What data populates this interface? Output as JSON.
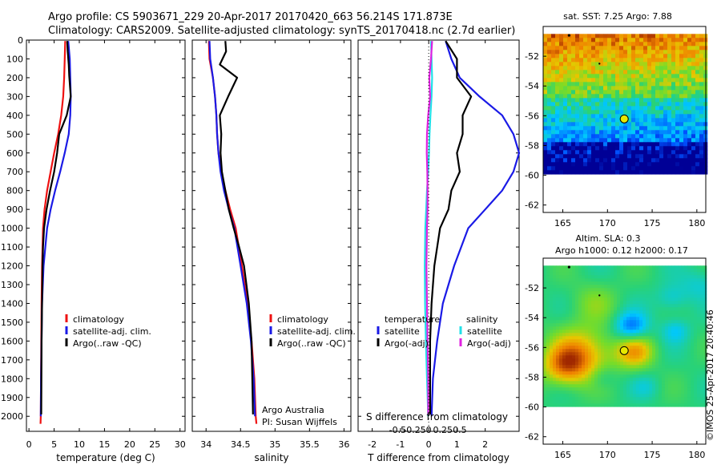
{
  "header": {
    "line1": "Argo profile: CS 5903671_229 20-Apr-2017 20170420_663 56.214S 171.873E",
    "line2": "Climatology: CARS2009. Satellite-adjusted climatology: synTS_20170418.nc (2.7d earlier)"
  },
  "colors": {
    "red": "#ee1111",
    "blue": "#1a1ae6",
    "black": "#000000",
    "cyan": "#22e0e8",
    "magenta": "#e020e0"
  },
  "chart_data": [
    {
      "type": "line",
      "id": "temperature",
      "xlabel": "temperature (deg C)",
      "ylabel": "",
      "xlim": [
        -0.5,
        31
      ],
      "ylim": [
        2080,
        0
      ],
      "xticks": [
        0,
        5,
        10,
        15,
        20,
        25,
        30
      ],
      "yticks": [
        0,
        100,
        200,
        300,
        400,
        500,
        600,
        700,
        800,
        900,
        1000,
        1100,
        1200,
        1300,
        1400,
        1500,
        1600,
        1700,
        1800,
        1900,
        2000
      ],
      "legend": [
        "climatology",
        "satellite-adj. clim.",
        "Argo(..raw -QC)"
      ],
      "series": [
        {
          "name": "climatology",
          "color": "#ee1111",
          "x": [
            7.2,
            7.1,
            7.0,
            6.8,
            6.4,
            5.8,
            5.0,
            4.3,
            3.6,
            3.1,
            2.8,
            2.6,
            2.5,
            2.45,
            2.4,
            2.35,
            2.3
          ],
          "y": [
            5,
            100,
            200,
            300,
            400,
            500,
            600,
            700,
            800,
            900,
            1000,
            1200,
            1400,
            1600,
            1800,
            2000,
            2040
          ]
        },
        {
          "name": "satellite-adj. clim.",
          "color": "#1a1ae6",
          "x": [
            7.8,
            8.1,
            8.2,
            8.3,
            8.2,
            7.9,
            7.1,
            6.2,
            5.2,
            4.3,
            3.6,
            2.9,
            2.6,
            2.5,
            2.4,
            2.35
          ],
          "y": [
            5,
            100,
            200,
            300,
            400,
            500,
            600,
            700,
            800,
            900,
            1000,
            1200,
            1400,
            1600,
            1800,
            2000
          ]
        },
        {
          "name": "Argo(..raw -QC)",
          "color": "#000000",
          "x": [
            7.6,
            7.7,
            7.9,
            8.0,
            8.3,
            7.5,
            6.0,
            5.6,
            5.0,
            4.2,
            3.5,
            3.0,
            2.8,
            2.7,
            2.6,
            2.5,
            2.45
          ],
          "y": [
            5,
            60,
            130,
            190,
            300,
            400,
            500,
            600,
            700,
            800,
            900,
            1000,
            1100,
            1200,
            1400,
            1600,
            1990
          ]
        }
      ]
    },
    {
      "type": "line",
      "id": "salinity",
      "xlabel": "salinity",
      "ylabel": "",
      "xlim": [
        33.8,
        36.1
      ],
      "ylim": [
        2080,
        0
      ],
      "xticks": [
        34,
        34.5,
        35,
        35.5,
        36
      ],
      "legend": [
        "climatology",
        "satellite-adj. clim.",
        "Argo(..raw -QC)"
      ],
      "series": [
        {
          "name": "climatology",
          "color": "#ee1111",
          "x": [
            34.04,
            34.05,
            34.1,
            34.13,
            34.15,
            34.16,
            34.18,
            34.22,
            34.28,
            34.35,
            34.43,
            34.52,
            34.6,
            34.66,
            34.7,
            34.72,
            34.73
          ],
          "y": [
            5,
            100,
            200,
            300,
            400,
            500,
            600,
            700,
            800,
            900,
            1000,
            1200,
            1400,
            1600,
            1800,
            2000,
            2040
          ]
        },
        {
          "name": "satellite-adj. clim.",
          "color": "#1a1ae6",
          "x": [
            34.05,
            34.06,
            34.1,
            34.13,
            34.15,
            34.16,
            34.18,
            34.21,
            34.26,
            34.33,
            34.41,
            34.5,
            34.59,
            34.65,
            34.69,
            34.71
          ],
          "y": [
            5,
            100,
            200,
            300,
            400,
            500,
            600,
            700,
            800,
            900,
            1000,
            1200,
            1400,
            1600,
            1800,
            2000
          ]
        },
        {
          "name": "Argo(..raw -QC)",
          "color": "#000000",
          "x": [
            34.28,
            34.29,
            34.2,
            34.45,
            34.32,
            34.2,
            34.22,
            34.21,
            34.23,
            34.28,
            34.33,
            34.4,
            34.48,
            34.55,
            34.62,
            34.66,
            34.68
          ],
          "y": [
            5,
            60,
            130,
            200,
            300,
            400,
            500,
            600,
            700,
            800,
            900,
            1000,
            1100,
            1200,
            1400,
            1600,
            1990
          ]
        }
      ],
      "annotations": [
        "Argo Australia",
        "PI: Susan Wijffels"
      ]
    },
    {
      "type": "line",
      "id": "difference",
      "xlabel": "T difference from climatology",
      "xlabel_top": "S difference from climatology",
      "ylabel": "",
      "xlim": [
        -2.5,
        3.2
      ],
      "ylim": [
        2080,
        0
      ],
      "xticks": [
        -2,
        -1,
        0,
        1,
        2
      ],
      "s_ticks": [
        "-0.5",
        "-0.25",
        "0",
        "0.25",
        "0.5"
      ],
      "legend_temperature": {
        "title": "temperature",
        "items": [
          "satellite",
          "Argo(-adj)"
        ]
      },
      "legend_salinity": {
        "title": "salinity",
        "items": [
          "satellite",
          "Argo(-adj)"
        ]
      },
      "series": [
        {
          "name": "temperature satellite",
          "color": "#1a1ae6",
          "x": [
            0.6,
            0.8,
            1.1,
            1.8,
            2.6,
            3.0,
            3.2,
            3.0,
            2.6,
            2.0,
            1.4,
            0.9,
            0.5,
            0.3,
            0.15,
            0.1
          ],
          "y": [
            5,
            100,
            200,
            300,
            400,
            500,
            600,
            700,
            800,
            900,
            1000,
            1200,
            1400,
            1600,
            1800,
            2000
          ]
        },
        {
          "name": "temperature Argo(-adj)",
          "color": "#000000",
          "x": [
            0.6,
            1.0,
            1.0,
            1.5,
            1.2,
            1.2,
            1.0,
            1.1,
            0.8,
            0.7,
            0.4,
            0.2,
            0.1,
            0.05,
            0.05
          ],
          "y": [
            5,
            100,
            200,
            300,
            400,
            500,
            600,
            700,
            800,
            900,
            1000,
            1200,
            1400,
            1600,
            1990
          ]
        },
        {
          "name": "salinity satellite",
          "color": "#22e0e8",
          "x": [
            0.08,
            0.1,
            0.12,
            0.1,
            0.06,
            0.03,
            0.01,
            -0.02,
            -0.06,
            -0.09,
            -0.12,
            -0.14,
            -0.13,
            -0.1,
            -0.06,
            -0.02
          ],
          "y": [
            5,
            100,
            200,
            300,
            400,
            500,
            600,
            700,
            800,
            900,
            1000,
            1200,
            1400,
            1600,
            1800,
            2000
          ]
        },
        {
          "name": "salinity Argo(-adj)",
          "color": "#e020e0",
          "x": [
            0.12,
            0.08,
            0.02,
            0.05,
            -0.02,
            -0.06,
            -0.07,
            -0.05,
            -0.04,
            -0.04,
            -0.06,
            -0.08,
            -0.06,
            -0.04,
            -0.02,
            -0.02
          ],
          "y": [
            5,
            100,
            200,
            300,
            400,
            500,
            600,
            700,
            800,
            900,
            1000,
            1200,
            1400,
            1600,
            1800,
            1990
          ]
        }
      ]
    },
    {
      "type": "heatmap",
      "id": "sst-map",
      "title": "sat. SST: 7.25 Argo: 7.88",
      "xticks": [
        165,
        170,
        175,
        180
      ],
      "yticks": [
        -52,
        -54,
        -56,
        -58,
        -60,
        -62
      ],
      "xlim": [
        162.8,
        181
      ],
      "ylim": [
        -62.5,
        -50
      ],
      "marker": {
        "lon": 171.873,
        "lat": -56.214
      }
    },
    {
      "type": "heatmap",
      "id": "sla-map",
      "title": "Altim. SLA: 0.3",
      "subtitle": "Argo h1000: 0.12 h2000: 0.17",
      "xticks": [
        165,
        170,
        175,
        180
      ],
      "yticks": [
        -52,
        -54,
        -56,
        -58,
        -60,
        -62
      ],
      "xlim": [
        162.8,
        181
      ],
      "ylim": [
        -62.5,
        -50
      ],
      "marker": {
        "lon": 171.873,
        "lat": -56.214
      }
    }
  ],
  "credit": "©IMOS 25-Apr-2017 20:40:46"
}
